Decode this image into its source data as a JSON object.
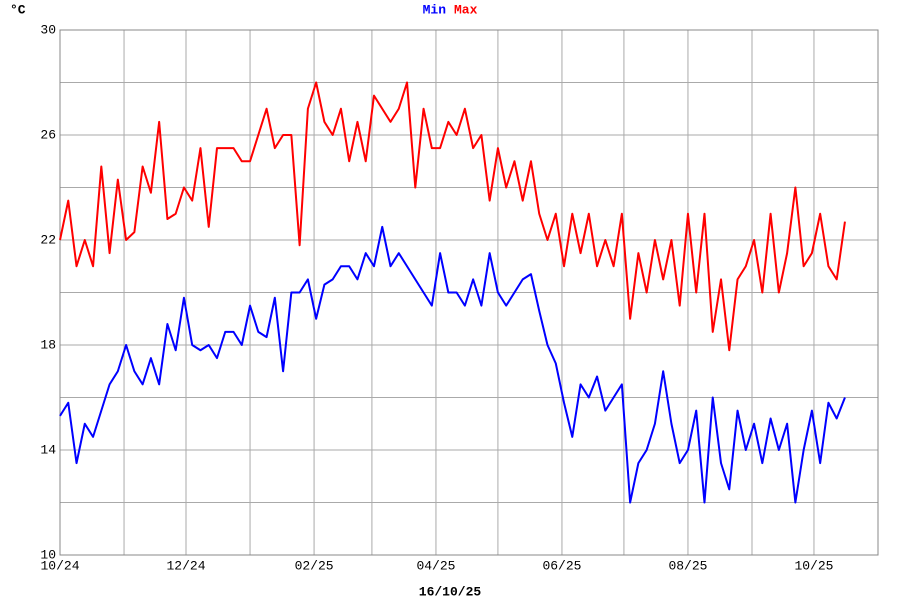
{
  "chart_data": {
    "type": "line",
    "y_label": "°C",
    "x_label": "16/10/25",
    "x": [
      0,
      4,
      8,
      12,
      16,
      20,
      24,
      28,
      32,
      36,
      40,
      44,
      48,
      52,
      56,
      60,
      64,
      68,
      72,
      76,
      80,
      84,
      88,
      92,
      96,
      100,
      104,
      108,
      112,
      116,
      120,
      124,
      128,
      132,
      136,
      140,
      144,
      148,
      152,
      156,
      160,
      164,
      168,
      172,
      176,
      180,
      184,
      188,
      192,
      196,
      200,
      204,
      208,
      212,
      216,
      220,
      224,
      228,
      232,
      236,
      240,
      244,
      248,
      252,
      256,
      260,
      264,
      268,
      272,
      276,
      280,
      284,
      288,
      292,
      296,
      300,
      304,
      308,
      312,
      316,
      320,
      324,
      328,
      332,
      336,
      340,
      344,
      348,
      352,
      356,
      360,
      364,
      368,
      372,
      376,
      380
    ],
    "series": [
      {
        "name": "Min",
        "color": "#0000ff",
        "values": [
          15.3,
          15.8,
          13.5,
          15,
          14.5,
          15.5,
          16.5,
          17,
          18,
          17,
          16.5,
          17.5,
          16.5,
          18.8,
          17.8,
          19.8,
          18,
          17.8,
          18,
          17.5,
          18.5,
          18.5,
          18,
          19.5,
          18.5,
          18.3,
          19.8,
          17,
          20,
          20,
          20.5,
          19,
          20.3,
          20.5,
          21,
          21,
          20.5,
          21.5,
          21,
          22.5,
          21,
          21.5,
          21,
          20.5,
          20,
          19.5,
          21.5,
          20,
          20,
          19.5,
          20.5,
          19.5,
          21.5,
          20,
          19.5,
          20,
          20.5,
          20.7,
          19.3,
          18,
          17.3,
          15.8,
          14.5,
          16.5,
          16,
          16.8,
          15.5,
          16,
          16.5,
          12,
          13.5,
          14,
          15,
          17,
          15,
          13.5,
          14,
          15.5,
          12,
          16,
          13.5,
          12.5,
          15.5,
          14,
          15,
          13.5,
          15.2,
          14,
          15,
          12,
          14,
          15.5,
          13.5,
          15.8,
          15.2,
          16
        ]
      },
      {
        "name": "Max",
        "color": "#ff0000",
        "values": [
          22,
          23.5,
          21,
          22,
          21,
          24.8,
          21.5,
          24.3,
          22,
          22.3,
          24.8,
          23.8,
          26.5,
          22.8,
          23,
          24,
          23.5,
          25.5,
          22.5,
          25.5,
          25.5,
          25.5,
          25,
          25,
          26,
          27,
          25.5,
          26,
          26,
          21.8,
          27,
          28,
          26.5,
          26,
          27,
          25,
          26.5,
          25,
          27.5,
          27,
          26.5,
          27,
          28,
          24,
          27,
          25.5,
          25.5,
          26.5,
          26,
          27,
          25.5,
          26,
          23.5,
          25.5,
          24,
          25,
          23.5,
          25,
          23,
          22,
          23,
          21,
          23,
          21.5,
          23,
          21,
          22,
          21,
          23,
          19,
          21.5,
          20,
          22,
          20.5,
          22,
          19.5,
          23,
          20,
          23,
          18.5,
          20.5,
          17.8,
          20.5,
          21,
          22,
          20,
          23,
          20,
          21.5,
          24,
          21,
          21.5,
          23,
          21,
          20.5,
          22.7
        ]
      }
    ],
    "xlim": [
      0,
      396
    ],
    "xticks": [
      {
        "value": 0,
        "label": "10/24"
      },
      {
        "value": 61,
        "label": "12/24"
      },
      {
        "value": 123,
        "label": "02/25"
      },
      {
        "value": 182,
        "label": "04/25"
      },
      {
        "value": 243,
        "label": "06/25"
      },
      {
        "value": 304,
        "label": "08/25"
      },
      {
        "value": 365,
        "label": "10/25"
      }
    ],
    "minor_xticks": [
      31,
      92,
      151,
      212,
      273,
      335
    ],
    "ylim": [
      10,
      30
    ],
    "yticks": [
      10,
      14,
      18,
      22,
      26,
      30
    ],
    "minor_yticks": [
      12,
      16,
      20,
      24,
      28
    ],
    "grid": true
  }
}
